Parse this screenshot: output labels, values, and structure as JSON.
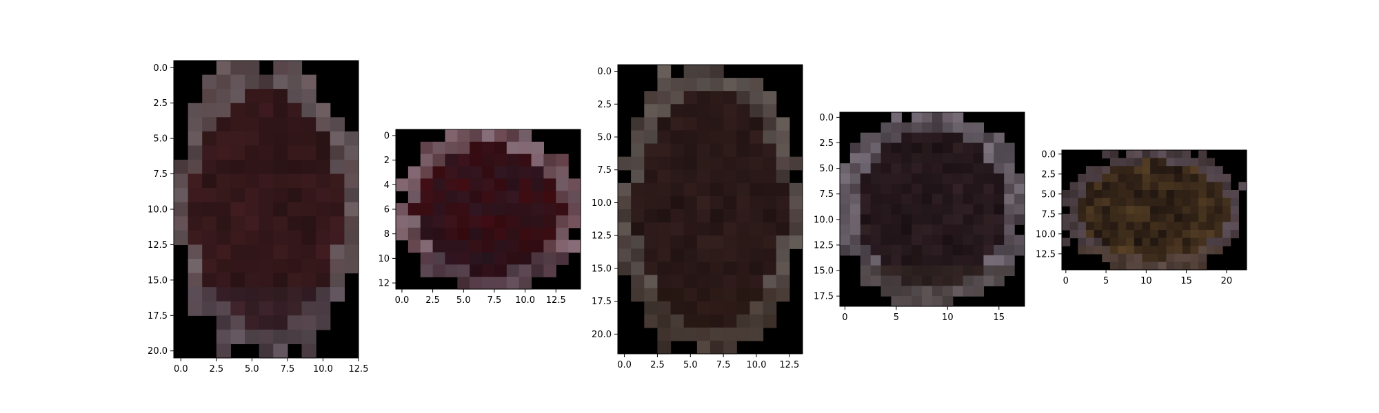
{
  "chart_data": [
    {
      "type": "heatmap",
      "content": "image",
      "shape": [
        21,
        13
      ],
      "xlim": [
        -0.5,
        12.5
      ],
      "ylim": [
        20.5,
        -0.5
      ],
      "xticks": [
        "0.0",
        "2.5",
        "5.0",
        "7.5",
        "10.0",
        "12.5"
      ],
      "yticks": [
        "0.0",
        "2.5",
        "5.0",
        "7.5",
        "10.0",
        "12.5",
        "15.0",
        "17.5",
        "20.0"
      ],
      "background": "#000000",
      "colors": {
        "body": "#2e1517",
        "accent": "#3b1a1e",
        "edge": "#6b5f63",
        "lower": "#3a2e3c"
      }
    },
    {
      "type": "heatmap",
      "content": "image",
      "shape": [
        13,
        15
      ],
      "xlim": [
        -0.5,
        14.5
      ],
      "ylim": [
        12.5,
        -0.5
      ],
      "xticks": [
        "0.0",
        "2.5",
        "5.0",
        "7.5",
        "10.0",
        "12.5"
      ],
      "yticks": [
        "0",
        "2",
        "4",
        "6",
        "8",
        "10",
        "12"
      ],
      "background": "#000000",
      "colors": {
        "body": "#3a0b10",
        "accent": "#2e1620",
        "edge": "#7c6670",
        "lower": "#1e1420"
      }
    },
    {
      "type": "heatmap",
      "content": "image",
      "shape": [
        22,
        14
      ],
      "xlim": [
        -0.5,
        13.5
      ],
      "ylim": [
        21.5,
        -0.5
      ],
      "xticks": [
        "0.0",
        "2.5",
        "5.0",
        "7.5",
        "10.0",
        "12.5"
      ],
      "yticks": [
        "0.0",
        "2.5",
        "5.0",
        "7.5",
        "10.0",
        "12.5",
        "15.0",
        "17.5",
        "20.0"
      ],
      "background": "#000000",
      "colors": {
        "body": "#261515",
        "accent": "#2e1c1b",
        "edge": "#5c5450",
        "lower": "#2a1a10"
      }
    },
    {
      "type": "heatmap",
      "content": "image",
      "shape": [
        19,
        18
      ],
      "xlim": [
        -0.5,
        17.5
      ],
      "ylim": [
        18.5,
        -0.5
      ],
      "xticks": [
        "0",
        "5",
        "10",
        "15"
      ],
      "yticks": [
        "0.0",
        "2.5",
        "5.0",
        "7.5",
        "10.0",
        "12.5",
        "15.0",
        "17.5"
      ],
      "background": "#000000",
      "colors": {
        "body": "#1e1216",
        "accent": "#2c1e22",
        "edge": "#6e6670",
        "lower": "#3a3026"
      }
    },
    {
      "type": "heatmap",
      "content": "image",
      "shape": [
        15,
        23
      ],
      "xlim": [
        -0.5,
        22.5
      ],
      "ylim": [
        14.5,
        -0.5
      ],
      "xticks": [
        "0",
        "5",
        "10",
        "15",
        "20"
      ],
      "yticks": [
        "0.0",
        "2.5",
        "5.0",
        "7.5",
        "10.0",
        "12.5"
      ],
      "background": "#000000",
      "colors": {
        "body": "#241812",
        "accent": "#4a3620",
        "edge": "#574a52",
        "lower": "#5a4226"
      }
    }
  ]
}
